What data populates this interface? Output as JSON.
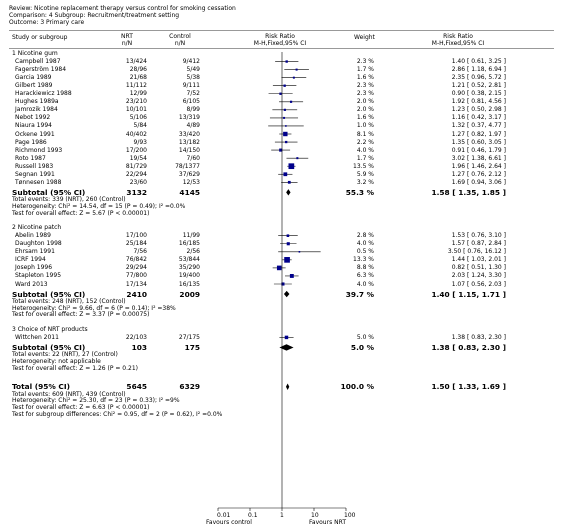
{
  "header": {
    "review": "Review:  Nicotine replacement therapy versus control for smoking cessation",
    "comparison": "Comparison:  4 Subgroup: Recruitment/treatment setting",
    "outcome": "Outcome:  3 Primary care"
  },
  "columns": {
    "study": "Study or subgroup",
    "nrt": [
      "NRT",
      "n/N"
    ],
    "control": [
      "Control",
      "n/N"
    ],
    "rr": [
      "Risk Ratio",
      "M-H,Fixed,95% CI"
    ],
    "weight": "Weight",
    "rr2": [
      "Risk Ratio",
      "M-H,Fixed,95% CI"
    ]
  },
  "axis": {
    "ticks": [
      "0.01",
      "0.1",
      "1",
      "10",
      "100"
    ],
    "favours_left": "Favours control",
    "favours_right": "Favours NRT"
  },
  "chart_data": {
    "type": "forest",
    "scale": "log",
    "xlim": [
      0.01,
      100
    ],
    "subgroups": [
      {
        "title": "1 Nicotine gum",
        "studies": [
          {
            "name": "Campbell 1987",
            "nrt": "13/424",
            "ctrl": "9/412",
            "weight": "2.3 %",
            "ci": "1.40 [ 0.61, 3.25 ]",
            "rr": 1.4,
            "lo": 0.61,
            "hi": 3.25,
            "w": 2.3
          },
          {
            "name": "Fagerström 1984",
            "nrt": "28/96",
            "ctrl": "5/49",
            "weight": "1.7 %",
            "ci": "2.86 [ 1.18, 6.94 ]",
            "rr": 2.86,
            "lo": 1.18,
            "hi": 6.94,
            "w": 1.7
          },
          {
            "name": "Garcia 1989",
            "nrt": "21/68",
            "ctrl": "5/38",
            "weight": "1.6 %",
            "ci": "2.35 [ 0.96, 5.72 ]",
            "rr": 2.35,
            "lo": 0.96,
            "hi": 5.72,
            "w": 1.6
          },
          {
            "name": "Gilbert 1989",
            "nrt": "11/112",
            "ctrl": "9/111",
            "weight": "2.3 %",
            "ci": "1.21 [ 0.52, 2.81 ]",
            "rr": 1.21,
            "lo": 0.52,
            "hi": 2.81,
            "w": 2.3
          },
          {
            "name": "Harackiewicz 1988",
            "nrt": "12/99",
            "ctrl": "7/52",
            "weight": "2.3 %",
            "ci": "0.90 [ 0.38, 2.15 ]",
            "rr": 0.9,
            "lo": 0.38,
            "hi": 2.15,
            "w": 2.3
          },
          {
            "name": "Hughes 1989a",
            "nrt": "23/210",
            "ctrl": "6/105",
            "weight": "2.0 %",
            "ci": "1.92 [ 0.81, 4.56 ]",
            "rr": 1.92,
            "lo": 0.81,
            "hi": 4.56,
            "w": 2.0
          },
          {
            "name": "Jamrozik 1984",
            "nrt": "10/101",
            "ctrl": "8/99",
            "weight": "2.0 %",
            "ci": "1.23 [ 0.50, 2.98 ]",
            "rr": 1.23,
            "lo": 0.5,
            "hi": 2.98,
            "w": 2.0
          },
          {
            "name": "Nebot 1992",
            "nrt": "5/106",
            "ctrl": "13/319",
            "weight": "1.6 %",
            "ci": "1.16 [ 0.42, 3.17 ]",
            "rr": 1.16,
            "lo": 0.42,
            "hi": 3.17,
            "w": 1.6
          },
          {
            "name": "Niaura 1994",
            "nrt": "5/84",
            "ctrl": "4/89",
            "weight": "1.0 %",
            "ci": "1.32 [ 0.37, 4.77 ]",
            "rr": 1.32,
            "lo": 0.37,
            "hi": 4.77,
            "w": 1.0
          },
          {
            "name": "Ockene 1991",
            "nrt": "40/402",
            "ctrl": "33/420",
            "weight": "8.1 %",
            "ci": "1.27 [ 0.82, 1.97 ]",
            "rr": 1.27,
            "lo": 0.82,
            "hi": 1.97,
            "w": 8.1
          },
          {
            "name": "Page 1986",
            "nrt": "9/93",
            "ctrl": "13/182",
            "weight": "2.2 %",
            "ci": "1.35 [ 0.60, 3.05 ]",
            "rr": 1.35,
            "lo": 0.6,
            "hi": 3.05,
            "w": 2.2
          },
          {
            "name": "Richmond 1993",
            "nrt": "17/200",
            "ctrl": "14/150",
            "weight": "4.0 %",
            "ci": "0.91 [ 0.46, 1.79 ]",
            "rr": 0.91,
            "lo": 0.46,
            "hi": 1.79,
            "w": 4.0
          },
          {
            "name": "Roto 1987",
            "nrt": "19/54",
            "ctrl": "7/60",
            "weight": "1.7 %",
            "ci": "3.02 [ 1.38, 6.61 ]",
            "rr": 3.02,
            "lo": 1.38,
            "hi": 6.61,
            "w": 1.7
          },
          {
            "name": "Russell 1983",
            "nrt": "81/729",
            "ctrl": "78/1377",
            "weight": "13.5 %",
            "ci": "1.96 [ 1.46, 2.64 ]",
            "rr": 1.96,
            "lo": 1.46,
            "hi": 2.64,
            "w": 13.5
          },
          {
            "name": "Segnan 1991",
            "nrt": "22/294",
            "ctrl": "37/629",
            "weight": "5.9 %",
            "ci": "1.27 [ 0.76, 2.12 ]",
            "rr": 1.27,
            "lo": 0.76,
            "hi": 2.12,
            "w": 5.9
          },
          {
            "name": "Tønnesen 1988",
            "nrt": "23/60",
            "ctrl": "12/53",
            "weight": "3.2 %",
            "ci": "1.69 [ 0.94, 3.06 ]",
            "rr": 1.69,
            "lo": 0.94,
            "hi": 3.06,
            "w": 3.2
          }
        ],
        "subtotal": {
          "label": "Subtotal (95% CI)",
          "nrt": "3132",
          "ctrl": "4145",
          "weight": "55.3 %",
          "ci": "1.58 [ 1.35, 1.85 ]",
          "rr": 1.58,
          "lo": 1.35,
          "hi": 1.85
        },
        "notes": [
          "Total events: 339 (NRT), 260 (Control)",
          "Heterogeneity: Chi² = 14.54, df = 15 (P = 0.49); I² =0.0%",
          "Test for overall effect: Z = 5.67 (P < 0.00001)"
        ]
      },
      {
        "title": "2 Nicotine patch",
        "studies": [
          {
            "name": "Abelin 1989",
            "nrt": "17/100",
            "ctrl": "11/99",
            "weight": "2.8 %",
            "ci": "1.53 [ 0.76, 3.10 ]",
            "rr": 1.53,
            "lo": 0.76,
            "hi": 3.1,
            "w": 2.8
          },
          {
            "name": "Daughton 1998",
            "nrt": "25/184",
            "ctrl": "16/185",
            "weight": "4.0 %",
            "ci": "1.57 [ 0.87, 2.84 ]",
            "rr": 1.57,
            "lo": 0.87,
            "hi": 2.84,
            "w": 4.0
          },
          {
            "name": "Ehrsam 1991",
            "nrt": "7/56",
            "ctrl": "2/56",
            "weight": "0.5 %",
            "ci": "3.50 [ 0.76, 16.12 ]",
            "rr": 3.5,
            "lo": 0.76,
            "hi": 16.12,
            "w": 0.5
          },
          {
            "name": "ICRF 1994",
            "nrt": "76/842",
            "ctrl": "53/844",
            "weight": "13.3 %",
            "ci": "1.44 [ 1.03, 2.01 ]",
            "rr": 1.44,
            "lo": 1.03,
            "hi": 2.01,
            "w": 13.3
          },
          {
            "name": "Joseph 1996",
            "nrt": "29/294",
            "ctrl": "35/290",
            "weight": "8.8 %",
            "ci": "0.82 [ 0.51, 1.30 ]",
            "rr": 0.82,
            "lo": 0.51,
            "hi": 1.3,
            "w": 8.8
          },
          {
            "name": "Stapleton 1995",
            "nrt": "77/800",
            "ctrl": "19/400",
            "weight": "6.3 %",
            "ci": "2.03 [ 1.24, 3.30 ]",
            "rr": 2.03,
            "lo": 1.24,
            "hi": 3.3,
            "w": 6.3
          },
          {
            "name": "Ward 2013",
            "nrt": "17/134",
            "ctrl": "16/135",
            "weight": "4.0 %",
            "ci": "1.07 [ 0.56, 2.03 ]",
            "rr": 1.07,
            "lo": 0.56,
            "hi": 2.03,
            "w": 4.0
          }
        ],
        "subtotal": {
          "label": "Subtotal (95% CI)",
          "nrt": "2410",
          "ctrl": "2009",
          "weight": "39.7 %",
          "ci": "1.40 [ 1.15, 1.71 ]",
          "rr": 1.4,
          "lo": 1.15,
          "hi": 1.71
        },
        "notes": [
          "Total events: 248 (NRT), 152 (Control)",
          "Heterogeneity: Chi² = 9.66, df = 6 (P = 0.14); I² =38%",
          "Test for overall effect: Z = 3.37 (P = 0.00075)"
        ]
      },
      {
        "title": "3 Choice of NRT products",
        "studies": [
          {
            "name": "Wittchen 2011",
            "nrt": "22/103",
            "ctrl": "27/175",
            "weight": "5.0 %",
            "ci": "1.38 [ 0.83, 2.30 ]",
            "rr": 1.38,
            "lo": 0.83,
            "hi": 2.3,
            "w": 5.0
          }
        ],
        "subtotal": {
          "label": "Subtotal (95% CI)",
          "nrt": "103",
          "ctrl": "175",
          "weight": "5.0 %",
          "ci": "1.38 [ 0.83, 2.30 ]",
          "rr": 1.38,
          "lo": 0.83,
          "hi": 2.3
        },
        "notes": [
          "Total events: 22 (NRT), 27 (Control)",
          "Heterogeneity: not applicable",
          "Test for overall effect: Z = 1.26 (P = 0.21)"
        ]
      }
    ],
    "total": {
      "label": "Total (95% CI)",
      "nrt": "5645",
      "ctrl": "6329",
      "weight": "100.0 %",
      "ci": "1.50 [ 1.33, 1.69 ]",
      "rr": 1.5,
      "lo": 1.33,
      "hi": 1.69,
      "notes": [
        "Total events: 609 (NRT), 439 (Control)",
        "Heterogeneity: Chi² = 25.30, df = 23 (P = 0.33); I² =9%",
        "Test for overall effect: Z = 6.63 (P < 0.00001)",
        "Test for subgroup differences: Chi² = 0.95, df = 2 (P = 0.62), I² =0.0%"
      ]
    },
    "colors": {
      "box": "#00008b",
      "line": "#000000",
      "diamond": "#000000",
      "axis": "#000000",
      "header_rule": "#999999"
    }
  }
}
